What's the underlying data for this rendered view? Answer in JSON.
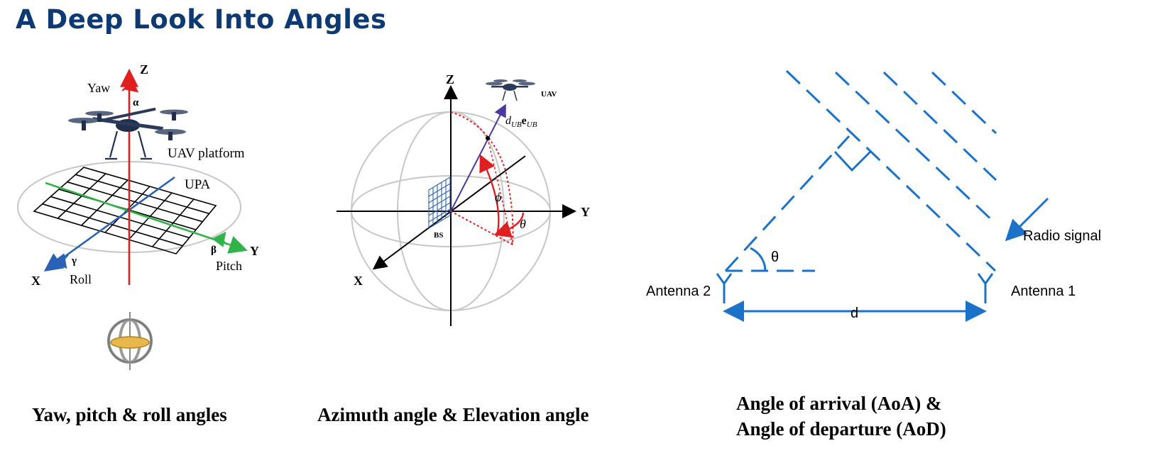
{
  "page": {
    "title": "A Deep Look Into Angles"
  },
  "panel1": {
    "labels": {
      "z": "Z",
      "yaw": "Yaw",
      "alpha": "α",
      "platform": "UAV platform",
      "upa": "UPA",
      "x": "X",
      "gamma": "γ",
      "roll": "Roll",
      "beta": "β",
      "y": "Y",
      "pitch": "Pitch"
    },
    "caption": "Yaw, pitch & roll angles"
  },
  "panel2": {
    "labels": {
      "z": "Z",
      "uav": "UAV",
      "vector_d": "d",
      "vector_d_sub": "UB",
      "vector_e": "e",
      "vector_e_sub": "UB",
      "phi": "ϕ",
      "theta": "θ",
      "y": "Y",
      "bs": "BS",
      "x": "X"
    },
    "caption": "Azimuth angle & Elevation angle"
  },
  "panel3": {
    "labels": {
      "radio_signal": "Radio signal",
      "theta": "θ",
      "antenna2": "Antenna 2",
      "antenna1": "Antenna 1",
      "d": "d"
    },
    "caption_line1": "Angle of arrival (AoA) &",
    "caption_line2": "Angle of departure (AoD)",
    "color": "#1a73c8"
  }
}
